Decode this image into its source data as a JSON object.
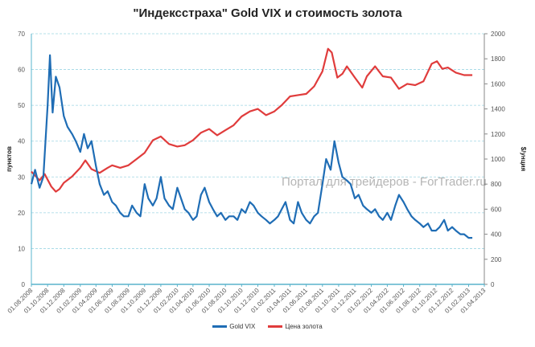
{
  "chart_data": {
    "type": "line",
    "title": "\"Индексстраха\" Gold VIX и стоимость золота",
    "ylabel": "пунктов",
    "y2label": "$/унция",
    "ylim": [
      0,
      70
    ],
    "y2lim": [
      0,
      2000
    ],
    "yticks": [
      "0",
      "10",
      "20",
      "30",
      "40",
      "50",
      "60",
      "70"
    ],
    "y2ticks": [
      "0",
      "200",
      "400",
      "600",
      "800",
      "1000",
      "1200",
      "1400",
      "1600",
      "1800",
      "2000"
    ],
    "xlim": [
      "2008-08-01",
      "2013-04-01"
    ],
    "xticks": [
      "01.08.2008",
      "01.10.2008",
      "01.12.2008",
      "01.02.2009",
      "01.04.2009",
      "01.06.2009",
      "01.08.2009",
      "01.10.2009",
      "01.12.2009",
      "01.02.2010",
      "01.04.2010",
      "01.06.2010",
      "01.08.2010",
      "01.10.2010",
      "01.12.2010",
      "01.02.2011",
      "01.04.2011",
      "01.06.2011",
      "01.08.2011",
      "01.10.2011",
      "01.12.2011",
      "01.02.2012",
      "01.04.2012",
      "01.06.2012",
      "01.08.2012",
      "01.10.2012",
      "01.12.2012",
      "01.02.2013",
      "01.04.2013"
    ],
    "grid": "horizontal",
    "legend": "bottom",
    "watermark": "Портал для трейдеров - ForTrader.ru",
    "series": [
      {
        "name": "Gold VIX",
        "axis": "left",
        "color": "#1f6db5",
        "x": [
          "2008-08-01",
          "2008-08-15",
          "2008-09-01",
          "2008-09-15",
          "2008-10-01",
          "2008-10-10",
          "2008-10-20",
          "2008-11-01",
          "2008-11-15",
          "2008-12-01",
          "2008-12-15",
          "2009-01-01",
          "2009-01-15",
          "2009-02-01",
          "2009-02-15",
          "2009-03-01",
          "2009-03-15",
          "2009-04-01",
          "2009-04-15",
          "2009-05-01",
          "2009-05-15",
          "2009-06-01",
          "2009-06-15",
          "2009-07-01",
          "2009-07-15",
          "2009-08-01",
          "2009-08-15",
          "2009-09-01",
          "2009-09-15",
          "2009-10-01",
          "2009-10-15",
          "2009-11-01",
          "2009-11-15",
          "2009-12-01",
          "2009-12-15",
          "2010-01-01",
          "2010-01-15",
          "2010-02-01",
          "2010-02-15",
          "2010-03-01",
          "2010-03-15",
          "2010-04-01",
          "2010-04-15",
          "2010-05-01",
          "2010-05-15",
          "2010-06-01",
          "2010-06-15",
          "2010-07-01",
          "2010-07-15",
          "2010-08-01",
          "2010-08-15",
          "2010-09-01",
          "2010-09-15",
          "2010-10-01",
          "2010-10-15",
          "2010-11-01",
          "2010-11-15",
          "2010-12-01",
          "2010-12-15",
          "2011-01-01",
          "2011-01-15",
          "2011-02-01",
          "2011-02-15",
          "2011-03-01",
          "2011-03-15",
          "2011-04-01",
          "2011-04-15",
          "2011-05-01",
          "2011-05-15",
          "2011-06-01",
          "2011-06-15",
          "2011-07-01",
          "2011-07-15",
          "2011-08-01",
          "2011-08-15",
          "2011-09-01",
          "2011-09-15",
          "2011-10-01",
          "2011-10-15",
          "2011-11-01",
          "2011-11-15",
          "2011-12-01",
          "2011-12-15",
          "2012-01-01",
          "2012-01-15",
          "2012-02-01",
          "2012-02-15",
          "2012-03-01",
          "2012-03-15",
          "2012-04-01",
          "2012-04-15",
          "2012-05-01",
          "2012-05-15",
          "2012-06-01",
          "2012-06-15",
          "2012-07-01",
          "2012-07-15",
          "2012-08-01",
          "2012-08-15",
          "2012-09-01",
          "2012-09-15",
          "2012-10-01",
          "2012-10-15",
          "2012-11-01",
          "2012-11-15",
          "2012-12-01",
          "2012-12-15",
          "2013-01-01",
          "2013-01-15",
          "2013-02-01",
          "2013-02-15"
        ],
        "values": [
          28,
          32,
          27,
          30,
          50,
          64,
          48,
          58,
          55,
          47,
          44,
          42,
          40,
          37,
          42,
          38,
          40,
          33,
          28,
          25,
          26,
          23,
          22,
          20,
          19,
          19,
          22,
          20,
          19,
          28,
          24,
          22,
          24,
          30,
          24,
          22,
          21,
          27,
          24,
          21,
          20,
          18,
          19,
          25,
          27,
          23,
          21,
          19,
          20,
          18,
          19,
          19,
          18,
          21,
          20,
          23,
          22,
          20,
          19,
          18,
          17,
          18,
          19,
          21,
          23,
          18,
          17,
          23,
          20,
          18,
          17,
          19,
          20,
          28,
          35,
          32,
          40,
          34,
          30,
          29,
          28,
          24,
          25,
          22,
          21,
          20,
          21,
          19,
          18,
          20,
          18,
          22,
          25,
          23,
          21,
          19,
          18,
          17,
          16,
          17,
          15,
          15,
          16,
          18,
          15,
          16,
          15,
          14,
          14,
          13,
          13
        ]
      },
      {
        "name": "Цена золота",
        "axis": "right",
        "color": "#e03c3c",
        "x": [
          "2008-08-01",
          "2008-09-01",
          "2008-09-20",
          "2008-10-15",
          "2008-11-01",
          "2008-11-15",
          "2008-12-01",
          "2009-01-01",
          "2009-02-01",
          "2009-02-20",
          "2009-03-15",
          "2009-04-15",
          "2009-05-15",
          "2009-06-01",
          "2009-07-01",
          "2009-08-01",
          "2009-09-01",
          "2009-10-01",
          "2009-11-01",
          "2009-12-01",
          "2010-01-01",
          "2010-02-01",
          "2010-03-01",
          "2010-04-01",
          "2010-05-01",
          "2010-06-01",
          "2010-07-01",
          "2010-08-01",
          "2010-09-01",
          "2010-10-01",
          "2010-11-01",
          "2010-12-01",
          "2011-01-01",
          "2011-02-01",
          "2011-03-01",
          "2011-04-01",
          "2011-05-01",
          "2011-06-01",
          "2011-07-01",
          "2011-08-01",
          "2011-08-22",
          "2011-09-05",
          "2011-09-26",
          "2011-10-15",
          "2011-11-01",
          "2011-12-01",
          "2011-12-29",
          "2012-01-15",
          "2012-02-15",
          "2012-03-15",
          "2012-04-15",
          "2012-05-15",
          "2012-06-15",
          "2012-07-15",
          "2012-08-15",
          "2012-09-15",
          "2012-10-05",
          "2012-10-25",
          "2012-11-15",
          "2012-12-15",
          "2013-01-15",
          "2013-02-15"
        ],
        "values": [
          900,
          830,
          880,
          780,
          740,
          760,
          810,
          860,
          930,
          990,
          920,
          890,
          930,
          950,
          930,
          950,
          1000,
          1050,
          1150,
          1180,
          1120,
          1100,
          1110,
          1150,
          1210,
          1240,
          1190,
          1230,
          1270,
          1340,
          1380,
          1400,
          1350,
          1380,
          1430,
          1500,
          1510,
          1520,
          1580,
          1700,
          1880,
          1850,
          1650,
          1680,
          1740,
          1650,
          1570,
          1660,
          1740,
          1660,
          1650,
          1560,
          1600,
          1590,
          1620,
          1760,
          1780,
          1720,
          1730,
          1690,
          1670,
          1670
        ]
      }
    ]
  }
}
